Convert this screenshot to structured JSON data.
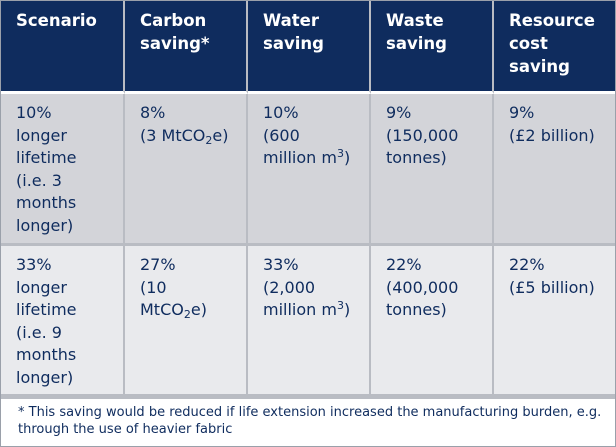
{
  "table": {
    "headers": [
      [
        "Scenario"
      ],
      [
        "Carbon",
        "saving*"
      ],
      [
        "Water",
        "saving"
      ],
      [
        "Waste",
        "saving"
      ],
      [
        "Resource",
        "cost",
        "saving"
      ]
    ],
    "rows": [
      {
        "scenario": [
          "10%",
          "longer",
          "lifetime",
          "(i.e. 3",
          "months",
          "longer)"
        ],
        "carbon": {
          "pct": "8%",
          "detail_pre": "(3 MtCO",
          "sub": "2",
          "detail_post": "e)"
        },
        "water": {
          "pct": "10%",
          "line2": "(600",
          "line3_pre": "million m",
          "sup": "3",
          "line3_post": ")"
        },
        "waste": [
          "9%",
          "(150,000",
          "tonnes)"
        ],
        "cost": [
          "9%",
          "(£2 billion)"
        ]
      },
      {
        "scenario": [
          "33%",
          "longer",
          "lifetime",
          "(i.e. 9",
          "months",
          "longer)"
        ],
        "carbon": {
          "pct": "27%",
          "line2": "(10",
          "detail_pre": "MtCO",
          "sub": "2",
          "detail_post": "e)"
        },
        "water": {
          "pct": "33%",
          "line2": "(2,000",
          "line3_pre": "million m",
          "sup": "3",
          "line3_post": ")"
        },
        "waste": [
          "22%",
          "(400,000",
          "tonnes)"
        ],
        "cost": [
          "22%",
          "(£5 billion)"
        ]
      }
    ],
    "footnote": "* This saving would be reduced if life extension increased the manufacturing burden, e.g. through the use of heavier fabric"
  }
}
